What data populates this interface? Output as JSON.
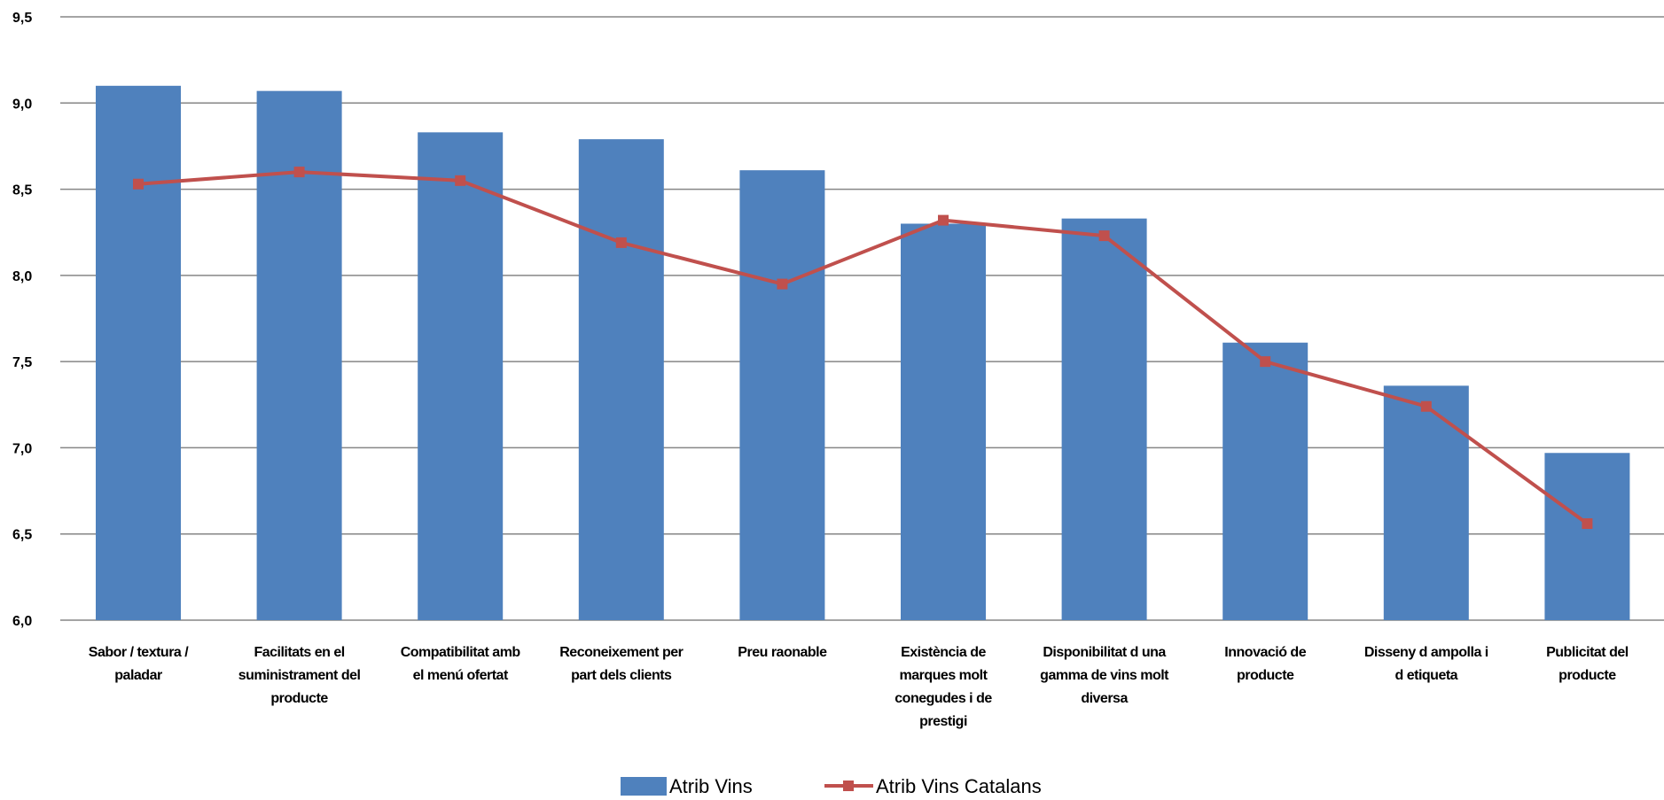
{
  "chart_data": {
    "type": "bar",
    "title": "",
    "xlabel": "",
    "ylabel": "",
    "ylim": [
      6.0,
      9.5
    ],
    "yticks": [
      "6,0",
      "6,5",
      "7,0",
      "7,5",
      "8,0",
      "8,5",
      "9,0",
      "9,5"
    ],
    "grid": true,
    "legend_position": "bottom",
    "categories": [
      [
        "Sabor / textura /",
        "paladar"
      ],
      [
        "Facilitats en el",
        "suministrament del",
        "producte"
      ],
      [
        "Compatibilitat amb",
        "el menú ofertat"
      ],
      [
        "Reconeixement per",
        "part dels clients"
      ],
      [
        "Preu raonable"
      ],
      [
        "Existència de",
        "marques molt",
        "conegudes i de",
        "prestigi"
      ],
      [
        "Disponibilitat d una",
        "gamma de vins molt",
        "diversa"
      ],
      [
        "Innovació de",
        "producte"
      ],
      [
        "Disseny d ampolla i",
        "d etiqueta"
      ],
      [
        "Publicitat del",
        "producte"
      ]
    ],
    "series": [
      {
        "name": "Atrib Vins",
        "type": "bar",
        "color": "#4F81BD",
        "values": [
          9.1,
          9.07,
          8.83,
          8.79,
          8.61,
          8.3,
          8.33,
          7.61,
          7.36,
          6.97
        ]
      },
      {
        "name": "Atrib Vins Catalans",
        "type": "line",
        "color": "#C0504D",
        "values": [
          8.53,
          8.6,
          8.55,
          8.19,
          7.95,
          8.32,
          8.23,
          7.5,
          7.24,
          6.56
        ]
      }
    ]
  }
}
